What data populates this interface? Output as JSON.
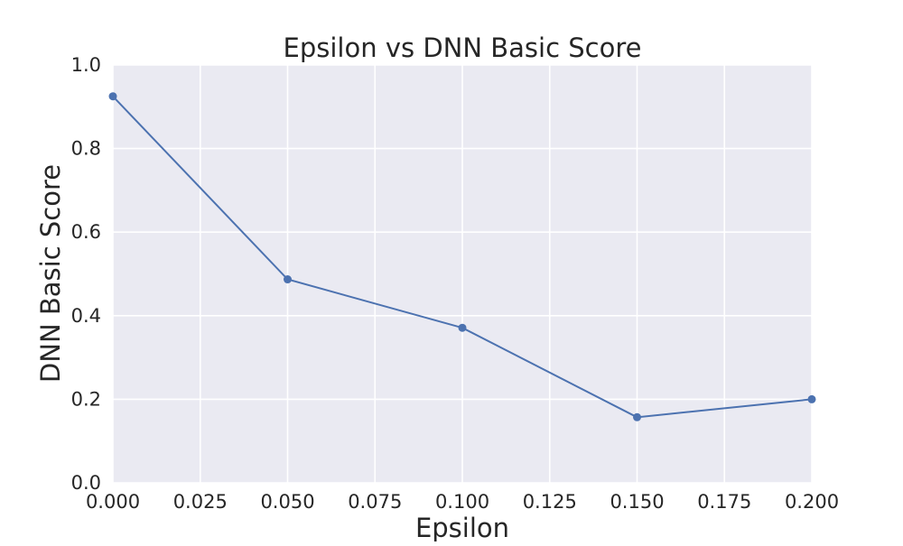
{
  "chart_data": {
    "type": "line",
    "title": "Epsilon vs DNN Basic Score",
    "xlabel": "Epsilon",
    "ylabel": "DNN Basic Score",
    "xlim": [
      0.0,
      0.2
    ],
    "ylim": [
      0.0,
      1.0
    ],
    "x_ticks": [
      "0.000",
      "0.025",
      "0.050",
      "0.075",
      "0.100",
      "0.125",
      "0.150",
      "0.175",
      "0.200"
    ],
    "y_ticks": [
      "0.0",
      "0.2",
      "0.4",
      "0.6",
      "0.8",
      "1.0"
    ],
    "grid": true,
    "legend": "none",
    "series": [
      {
        "x": [
          0.0,
          0.05,
          0.1,
          0.15,
          0.2
        ],
        "values": [
          0.925,
          0.487,
          0.371,
          0.157,
          0.2
        ],
        "color": "#4c72b0",
        "marker": "circle"
      }
    ],
    "background_color": "#eaeaf2",
    "grid_color": "#ffffff"
  }
}
